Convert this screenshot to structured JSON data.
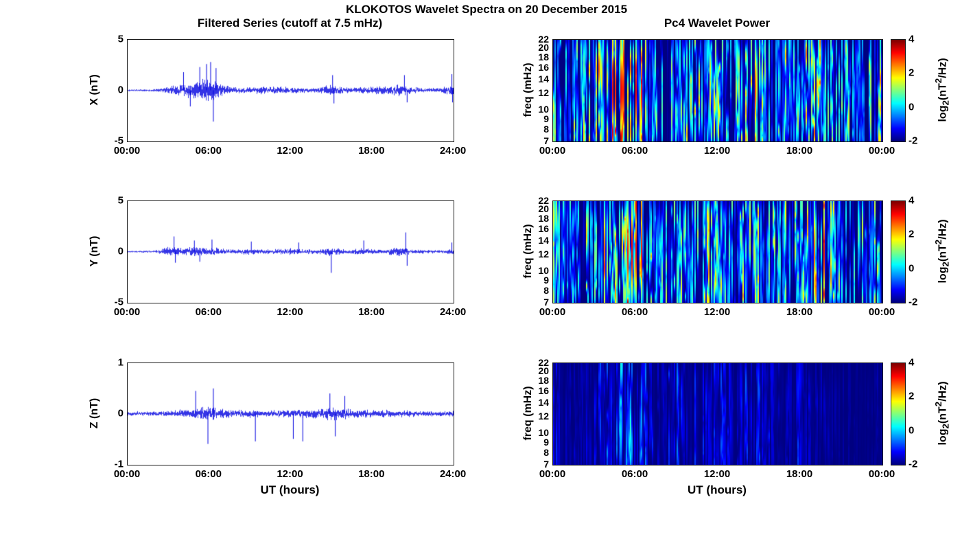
{
  "figure": {
    "title": "KLOKOTOS Wavelet Spectra on 20 December 2015",
    "left_column_title": "Filtered Series (cutoff at 7.5 mHz)",
    "right_column_title": "Pc4 Wavelet Power",
    "x_axis_label": "UT (hours)",
    "colorbar_label": {
      "prefix": "log",
      "sub": "2",
      "mid": "(nT",
      "sup": "2",
      "suffix": "/Hz)"
    },
    "series_line_color_hex": "#0000e0",
    "spectrogram_colormap": "jet",
    "spectrogram_background_hex": "#00007f"
  },
  "chart_data": [
    {
      "type": "line",
      "name": "X filtered magnetic field series",
      "ylabel": "X (nT)",
      "ylim": [
        -5,
        5
      ],
      "yticks": [
        5,
        0,
        -5
      ],
      "xlim_hours": [
        0,
        24
      ],
      "xtick_labels": [
        "00:00",
        "06:00",
        "12:00",
        "18:00",
        "24:00"
      ],
      "line_color": "#0000e0",
      "baseline_noise_nT": 0.15,
      "hourly_peak_envelope_nT": [
        0.18,
        0.18,
        0.25,
        0.6,
        1.1,
        1.6,
        2.2,
        0.9,
        0.45,
        0.5,
        0.65,
        0.6,
        0.55,
        0.4,
        0.4,
        0.9,
        0.45,
        0.5,
        0.7,
        0.7,
        1.0,
        0.5,
        0.35,
        0.4,
        1.0
      ],
      "notable_spikes": [
        {
          "t_hours": 4.1,
          "amp_nT": 1.8
        },
        {
          "t_hours": 4.6,
          "amp_nT": -1.6
        },
        {
          "t_hours": 5.3,
          "amp_nT": 2.3
        },
        {
          "t_hours": 5.8,
          "amp_nT": 2.6
        },
        {
          "t_hours": 6.1,
          "amp_nT": 2.8
        },
        {
          "t_hours": 6.3,
          "amp_nT": -3.1
        },
        {
          "t_hours": 6.5,
          "amp_nT": 2.2
        },
        {
          "t_hours": 15.1,
          "amp_nT": 1.5
        },
        {
          "t_hours": 15.2,
          "amp_nT": -1.3
        },
        {
          "t_hours": 20.4,
          "amp_nT": 1.5
        },
        {
          "t_hours": 20.6,
          "amp_nT": -1.2
        },
        {
          "t_hours": 23.9,
          "amp_nT": 1.6
        },
        {
          "t_hours": 23.95,
          "amp_nT": -1.2
        }
      ]
    },
    {
      "type": "heatmap",
      "name": "X component Pc4 wavelet power",
      "ylabel": "freq (mHz)",
      "freq_range_mHz": [
        7,
        22
      ],
      "freq_scale": "log",
      "freq_ticks": [
        22,
        20,
        18,
        16,
        14,
        12,
        10,
        9,
        8,
        7
      ],
      "xlim_hours": [
        0,
        24
      ],
      "xtick_labels": [
        "00:00",
        "06:00",
        "12:00",
        "18:00",
        "00:00"
      ],
      "colorbar": {
        "ticks": [
          4,
          2,
          0,
          -2
        ],
        "range": [
          -2,
          4
        ],
        "colormap": "jet"
      },
      "hourly_peak_power_log2": [
        2.5,
        1.5,
        2,
        3.5,
        4,
        4.2,
        4.2,
        3.5,
        2,
        2.2,
        3,
        3,
        2.5,
        2,
        2.5,
        3.5,
        2,
        2.5,
        3.5,
        3.5,
        3,
        2,
        1.5,
        2,
        3.5
      ]
    },
    {
      "type": "line",
      "name": "Y filtered magnetic field series",
      "ylabel": "Y (nT)",
      "ylim": [
        -5,
        5
      ],
      "yticks": [
        5,
        0,
        -5
      ],
      "xlim_hours": [
        0,
        24
      ],
      "xtick_labels": [
        "00:00",
        "06:00",
        "12:00",
        "18:00",
        "24:00"
      ],
      "line_color": "#0000e0",
      "baseline_noise_nT": 0.13,
      "hourly_peak_envelope_nT": [
        0.15,
        0.15,
        0.2,
        0.7,
        0.6,
        0.8,
        0.7,
        0.5,
        0.35,
        0.5,
        0.35,
        0.4,
        0.5,
        0.35,
        0.4,
        0.7,
        0.35,
        0.5,
        0.45,
        0.4,
        0.8,
        0.35,
        0.3,
        0.3,
        0.45
      ],
      "notable_spikes": [
        {
          "t_hours": 3.4,
          "amp_nT": 1.5
        },
        {
          "t_hours": 3.5,
          "amp_nT": -1.1
        },
        {
          "t_hours": 4.9,
          "amp_nT": 1.1
        },
        {
          "t_hours": 5.3,
          "amp_nT": -1.0
        },
        {
          "t_hours": 6.2,
          "amp_nT": 1.2
        },
        {
          "t_hours": 9.1,
          "amp_nT": 1.0
        },
        {
          "t_hours": 12.6,
          "amp_nT": 0.9
        },
        {
          "t_hours": 15.0,
          "amp_nT": -2.1
        },
        {
          "t_hours": 17.4,
          "amp_nT": 1.1
        },
        {
          "t_hours": 20.5,
          "amp_nT": 1.9
        },
        {
          "t_hours": 20.6,
          "amp_nT": -1.4
        },
        {
          "t_hours": 23.9,
          "amp_nT": 0.9
        }
      ]
    },
    {
      "type": "heatmap",
      "name": "Y component Pc4 wavelet power",
      "ylabel": "freq (mHz)",
      "freq_range_mHz": [
        7,
        22
      ],
      "freq_scale": "log",
      "freq_ticks": [
        22,
        20,
        18,
        16,
        14,
        12,
        10,
        9,
        8,
        7
      ],
      "xlim_hours": [
        0,
        24
      ],
      "xtick_labels": [
        "00:00",
        "06:00",
        "12:00",
        "18:00",
        "00:00"
      ],
      "colorbar": {
        "ticks": [
          4,
          2,
          0,
          -2
        ],
        "range": [
          -2,
          4
        ],
        "colormap": "jet"
      },
      "hourly_peak_power_log2": [
        2,
        1,
        1.5,
        3.2,
        3.5,
        4,
        4,
        3,
        1.8,
        2.2,
        2.2,
        2.5,
        3,
        2,
        2.5,
        3.2,
        2,
        2.5,
        3,
        3.5,
        3.5,
        1.8,
        1.2,
        2,
        3
      ]
    },
    {
      "type": "line",
      "name": "Z filtered magnetic field series",
      "ylabel": "Z (nT)",
      "ylim": [
        -1,
        1
      ],
      "yticks": [
        1,
        0,
        -1
      ],
      "xlim_hours": [
        0,
        24
      ],
      "xtick_labels": [
        "00:00",
        "06:00",
        "12:00",
        "18:00",
        "24:00"
      ],
      "line_color": "#0000e0",
      "baseline_noise_nT": 0.06,
      "hourly_peak_envelope_nT": [
        0.07,
        0.07,
        0.08,
        0.1,
        0.13,
        0.2,
        0.22,
        0.15,
        0.12,
        0.13,
        0.11,
        0.12,
        0.14,
        0.13,
        0.16,
        0.2,
        0.18,
        0.16,
        0.13,
        0.11,
        0.12,
        0.1,
        0.09,
        0.09,
        0.1
      ],
      "notable_spikes": [
        {
          "t_hours": 5.0,
          "amp_nT": 0.45
        },
        {
          "t_hours": 5.9,
          "amp_nT": -0.6
        },
        {
          "t_hours": 6.3,
          "amp_nT": 0.5
        },
        {
          "t_hours": 9.4,
          "amp_nT": -0.55
        },
        {
          "t_hours": 12.2,
          "amp_nT": -0.5
        },
        {
          "t_hours": 12.9,
          "amp_nT": -0.55
        },
        {
          "t_hours": 14.9,
          "amp_nT": 0.4
        },
        {
          "t_hours": 15.3,
          "amp_nT": -0.45
        },
        {
          "t_hours": 16.0,
          "amp_nT": 0.35
        }
      ]
    },
    {
      "type": "heatmap",
      "name": "Z component Pc4 wavelet power",
      "ylabel": "freq (mHz)",
      "freq_range_mHz": [
        7,
        22
      ],
      "freq_scale": "log",
      "freq_ticks": [
        22,
        20,
        18,
        16,
        14,
        12,
        10,
        9,
        8,
        7
      ],
      "xlim_hours": [
        0,
        24
      ],
      "xtick_labels": [
        "00:00",
        "06:00",
        "12:00",
        "18:00",
        "00:00"
      ],
      "colorbar": {
        "ticks": [
          4,
          2,
          0,
          -2
        ],
        "range": [
          -2,
          4
        ],
        "colormap": "jet"
      },
      "hourly_peak_power_log2": [
        -0.8,
        -1.5,
        -1.5,
        -1,
        -0.2,
        0.8,
        1,
        -0.5,
        -1,
        -0.2,
        -1,
        -0.5,
        -0.3,
        -1,
        -0.5,
        -0.5,
        -1,
        -1.4,
        -0.6,
        -1.4,
        -1.5,
        -1.6,
        -1.8,
        -1.8,
        -1.4
      ]
    }
  ]
}
